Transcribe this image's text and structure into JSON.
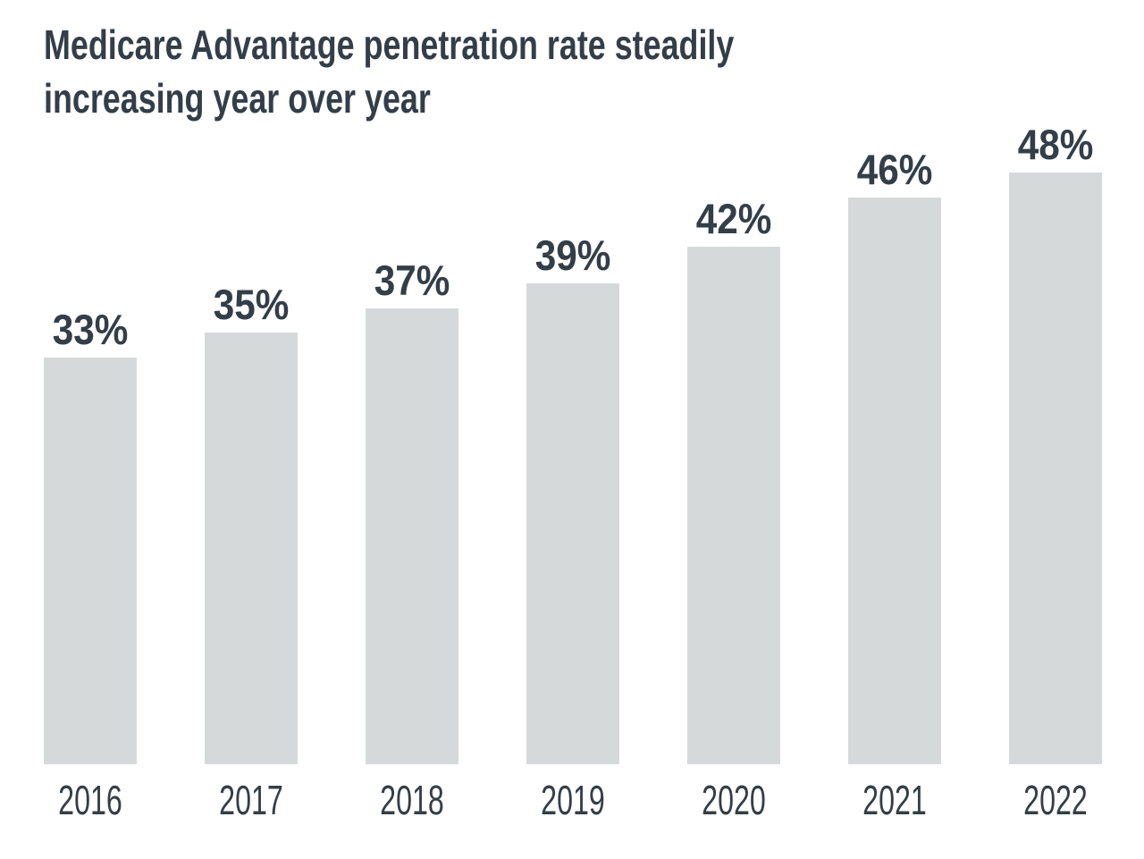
{
  "title": {
    "lines": [
      "Medicare Advantage penetration rate steadily",
      "increasing year over year"
    ],
    "color": "#333e48"
  },
  "chart_data": {
    "type": "bar",
    "title": "Medicare Advantage penetration rate steadily increasing year over year",
    "categories": [
      "2016",
      "2017",
      "2018",
      "2019",
      "2020",
      "2021",
      "2022"
    ],
    "values": [
      33,
      35,
      37,
      39,
      42,
      46,
      48
    ],
    "value_labels": [
      "33%",
      "35%",
      "37%",
      "39%",
      "42%",
      "46%",
      "48%"
    ],
    "xlabel": "",
    "ylabel": "",
    "ylim": [
      0,
      48
    ],
    "unit": "percent",
    "grid": false,
    "legend": false,
    "bar_color": "#d6d9d9",
    "text_color": "#333e48",
    "background_color": "#ffffff"
  }
}
